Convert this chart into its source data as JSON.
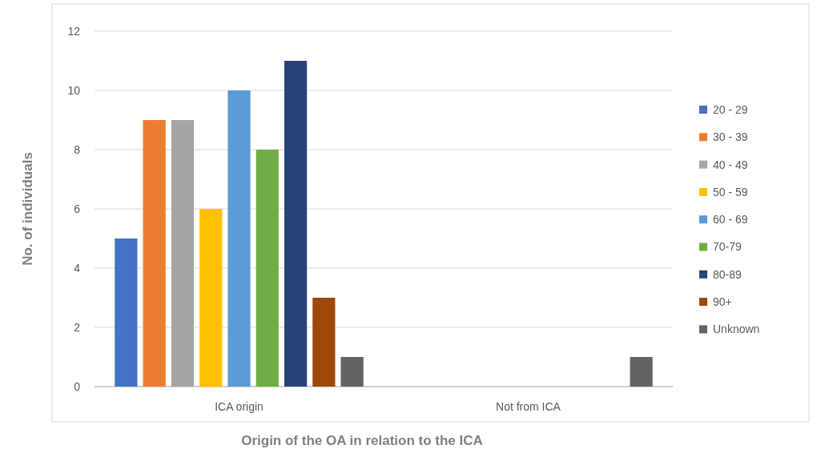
{
  "chart_data": {
    "type": "bar",
    "xlabel": "Origin of the OA in relation to the ICA",
    "ylabel": "No. of individuals",
    "categories": [
      "ICA origin",
      "Not from ICA"
    ],
    "series": [
      {
        "name": "20 - 29",
        "color": "#4472c4",
        "values": [
          5,
          0
        ]
      },
      {
        "name": "30 - 39",
        "color": "#ed7d31",
        "values": [
          9,
          0
        ]
      },
      {
        "name": "40 - 49",
        "color": "#a5a5a5",
        "values": [
          9,
          0
        ]
      },
      {
        "name": "50 - 59",
        "color": "#ffc000",
        "values": [
          6,
          0
        ]
      },
      {
        "name": "60 - 69",
        "color": "#5b9bd5",
        "values": [
          10,
          0
        ]
      },
      {
        "name": "70-79",
        "color": "#70ad47",
        "values": [
          8,
          0
        ]
      },
      {
        "name": "80-89",
        "color": "#264478",
        "values": [
          11,
          0
        ]
      },
      {
        "name": "90+",
        "color": "#9e480e",
        "values": [
          3,
          0
        ]
      },
      {
        "name": "Unknown",
        "color": "#636363",
        "values": [
          1,
          1
        ]
      }
    ],
    "ylim": [
      0,
      12
    ],
    "yticks": [
      0,
      2,
      4,
      6,
      8,
      10,
      12
    ],
    "grid": "y",
    "legend": "right"
  }
}
